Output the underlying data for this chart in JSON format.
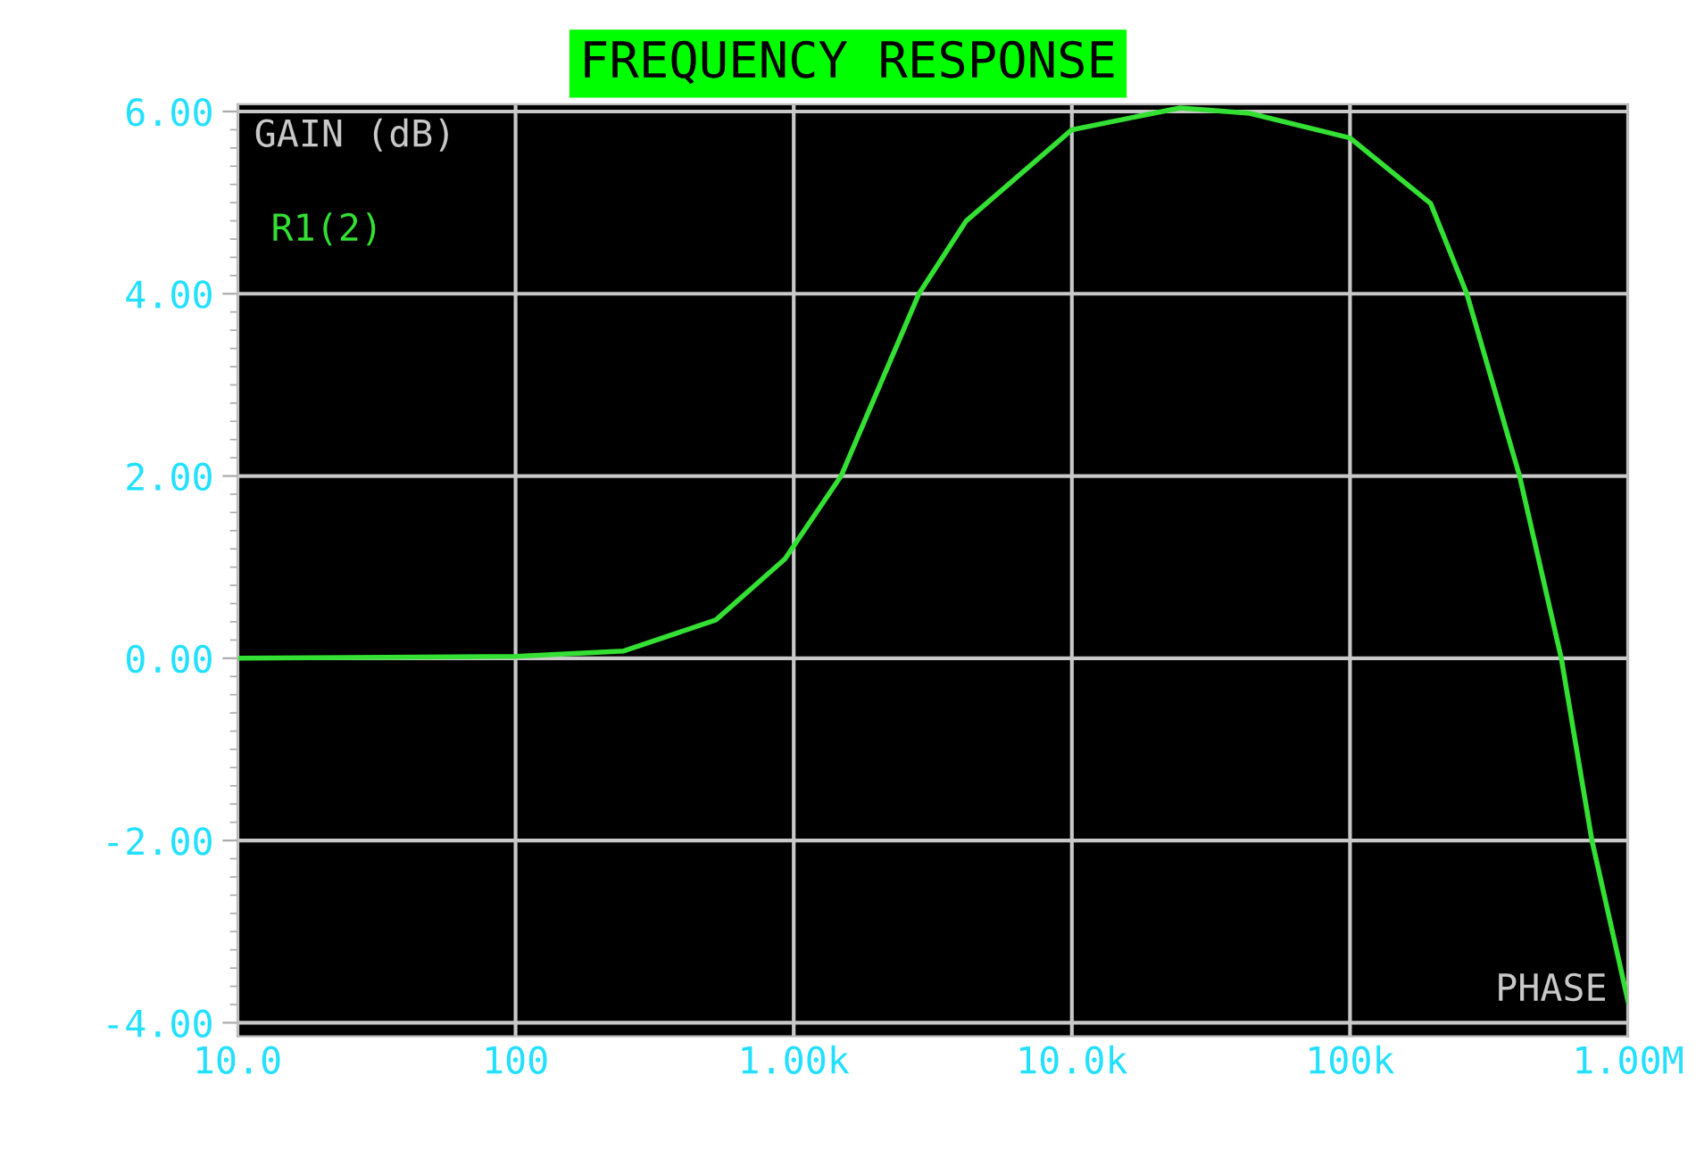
{
  "chart_data": {
    "type": "line",
    "title": "FREQUENCY RESPONSE",
    "ylabel": "GAIN (dB)",
    "x": [
      10,
      100,
      245,
      525,
      930,
      1480,
      2820,
      4170,
      10000,
      24500,
      43600,
      100000,
      195000,
      263000,
      407000,
      575000,
      741000,
      1000000
    ],
    "series": [
      {
        "name": "R1(2)",
        "color": "#33e033",
        "values": [
          0,
          0.02,
          0.08,
          0.42,
          1.09,
          2.0,
          4.0,
          4.8,
          5.8,
          6.04,
          5.98,
          5.71,
          4.99,
          4.0,
          2.0,
          0,
          -2.0,
          -3.77
        ]
      }
    ],
    "log": "x",
    "xlim": [
      10,
      1000000
    ],
    "xticks": [
      {
        "value": 10,
        "label": "10.0"
      },
      100,
      {
        "value": 1000,
        "label": "1.00k"
      },
      {
        "value": 10000,
        "label": "10.0k"
      },
      {
        "value": 100000,
        "label": "100k"
      },
      {
        "value": 1000000,
        "label": "1.00M"
      }
    ],
    "ylim": [
      -4.15,
      6.08
    ],
    "yticks": [
      {
        "value": -4,
        "label": "-4.00"
      },
      {
        "value": -2,
        "label": "-2.00"
      },
      {
        "value": 0,
        "label": "0.00"
      },
      {
        "value": 2,
        "label": "2.00"
      },
      {
        "value": 4,
        "label": "4.00"
      },
      {
        "value": 6,
        "label": "6.00"
      }
    ],
    "grid": true,
    "legend": "top left",
    "marker": "none",
    "line_style": "solid",
    "annotations": [
      "PHASE"
    ]
  }
}
